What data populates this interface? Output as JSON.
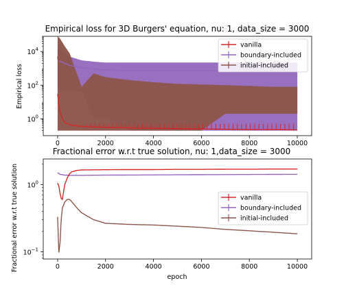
{
  "chart_data": [
    {
      "type": "line",
      "title": "Empirical loss for 3D Burgers' equation, nu: 1, data_size = 3000",
      "xlabel": "",
      "ylabel": "Empirical loss",
      "yscale": "log",
      "xlim": [
        -600,
        10600
      ],
      "ylim": [
        0.1,
        80000
      ],
      "xticks": [
        0,
        2000,
        4000,
        6000,
        8000,
        10000
      ],
      "yticks": [
        {
          "value": 1,
          "base": "10",
          "exp": "0"
        },
        {
          "value": 100,
          "base": "10",
          "exp": "2"
        },
        {
          "value": 10000,
          "base": "10",
          "exp": "4"
        }
      ],
      "legend": "top-right",
      "grid": false,
      "series": [
        {
          "name": "vanilla",
          "color": "#d62728",
          "x": [
            0,
            100,
            200,
            300,
            500,
            800,
            1200,
            2000,
            3000,
            4000,
            5000,
            6000,
            7000,
            8000,
            9000,
            10000
          ],
          "y": [
            30,
            2.5,
            1,
            0.6,
            0.45,
            0.38,
            0.34,
            0.31,
            0.29,
            0.27,
            0.26,
            0.25,
            0.24,
            0.23,
            0.23,
            0.22
          ],
          "spike_top": 0.5,
          "spike_from": 1200,
          "spike_every": 180
        },
        {
          "name": "boundary-included",
          "color": "#9467bd",
          "x": [
            0,
            500,
            1000,
            1500,
            2000,
            3000,
            4000,
            5000,
            6000,
            7000,
            8000,
            9000,
            10000
          ],
          "y": [
            3000,
            1500,
            1100,
            900,
            800,
            700,
            700,
            700,
            700,
            700,
            700,
            700,
            700
          ],
          "band_upper": [
            15000,
            5000,
            3000,
            2500,
            2200,
            2200,
            2200,
            2200,
            2200,
            2200,
            2200,
            2200,
            2200
          ],
          "band_lower": [
            50,
            50,
            50,
            1,
            1,
            0.2,
            0.2,
            0.2,
            0.2,
            0.2,
            0.2,
            0.2,
            0.2
          ]
        },
        {
          "name": "initial-included",
          "color": "#8c564b",
          "x": [
            0,
            100,
            300,
            500,
            800,
            1000,
            1500,
            2000,
            3000,
            4000,
            5000,
            6000,
            7000,
            8000,
            9000,
            10000
          ],
          "y": [
            5000,
            400,
            250,
            150,
            50,
            45,
            55,
            60,
            55,
            50,
            45,
            42,
            40,
            38,
            36,
            35
          ],
          "band_upper": [
            80000,
            60000,
            20000,
            8000,
            500,
            80,
            500,
            300,
            200,
            150,
            120,
            110,
            100,
            90,
            80,
            80
          ],
          "band_lower": [
            0.2,
            0.2,
            0.2,
            0.2,
            0.2,
            0.2,
            0.2,
            0.2,
            0.2,
            0.2,
            0.2,
            0.2,
            2,
            2,
            2,
            2
          ]
        }
      ]
    },
    {
      "type": "line",
      "title": "Fractional error w.r.t true solution, nu: 1,data_size = 3000",
      "xlabel": "epoch",
      "ylabel": "Fractional error w.r.t true solution",
      "yscale": "log",
      "xlim": [
        -600,
        10600
      ],
      "ylim": [
        0.078,
        2.4
      ],
      "xticks": [
        0,
        2000,
        4000,
        6000,
        8000,
        10000
      ],
      "yticks": [
        {
          "value": 0.1,
          "base": "10",
          "exp": "−1"
        },
        {
          "value": 1,
          "base": "10",
          "exp": "0"
        }
      ],
      "legend": "center-right",
      "grid": false,
      "series": [
        {
          "name": "vanilla",
          "color": "#d62728",
          "x": [
            0,
            50,
            100,
            150,
            200,
            250,
            300,
            400,
            500,
            600,
            800,
            1000,
            2000,
            3000,
            4000,
            5000,
            6000,
            7000,
            8000,
            9000,
            10000
          ],
          "y": [
            1.05,
            0.95,
            0.75,
            0.62,
            0.6,
            0.8,
            1.0,
            1.25,
            1.45,
            1.55,
            1.62,
            1.65,
            1.66,
            1.67,
            1.67,
            1.68,
            1.68,
            1.69,
            1.69,
            1.7,
            1.7
          ]
        },
        {
          "name": "boundary-included",
          "color": "#9467bd",
          "x": [
            0,
            100,
            200,
            300,
            500,
            1000,
            2000,
            4000,
            6000,
            8000,
            10000
          ],
          "y": [
            1.5,
            1.42,
            1.4,
            1.38,
            1.37,
            1.37,
            1.38,
            1.39,
            1.4,
            1.41,
            1.42
          ]
        },
        {
          "name": "initial-included",
          "color": "#8c564b",
          "x": [
            0,
            40,
            80,
            120,
            160,
            200,
            300,
            400,
            500,
            600,
            800,
            1000,
            1500,
            2000,
            3000,
            4000,
            5000,
            6000,
            7000,
            8000,
            9000,
            10000
          ],
          "y": [
            0.33,
            0.1,
            0.09,
            0.2,
            0.35,
            0.45,
            0.55,
            0.6,
            0.6,
            0.55,
            0.45,
            0.38,
            0.3,
            0.265,
            0.255,
            0.25,
            0.24,
            0.23,
            0.215,
            0.205,
            0.195,
            0.185
          ]
        }
      ]
    }
  ]
}
